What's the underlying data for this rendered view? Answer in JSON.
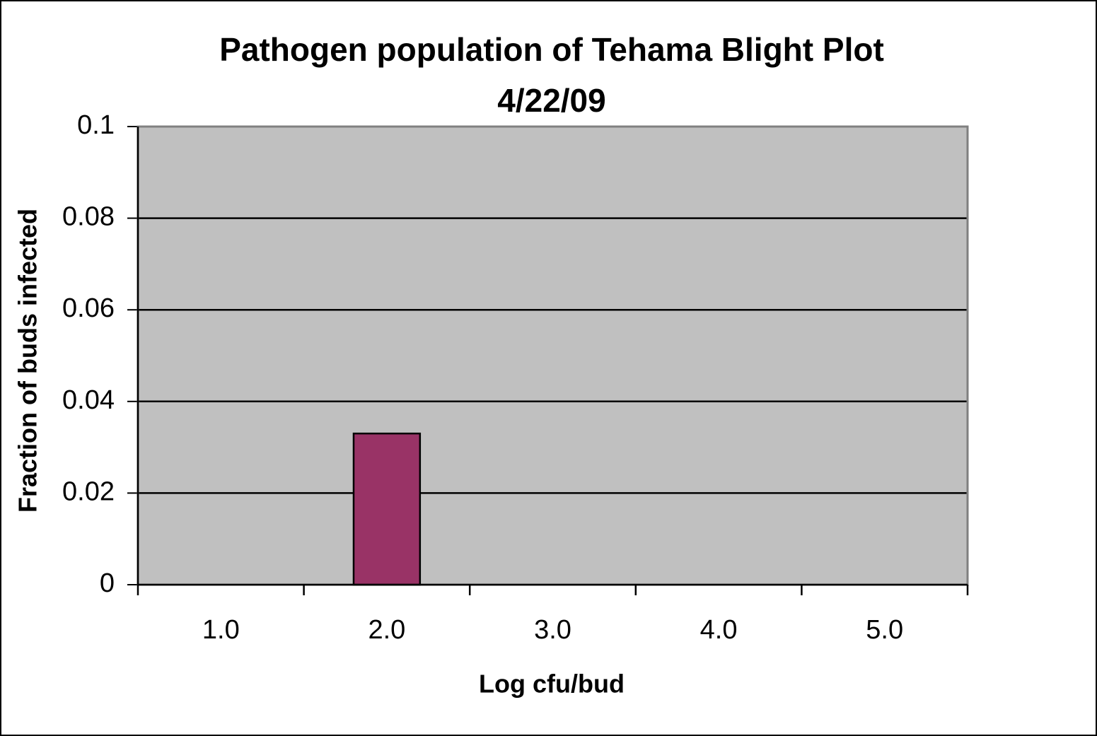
{
  "chart_data": {
    "type": "bar",
    "title": "Pathogen population of Tehama Blight Plot",
    "subtitle": "4/22/09",
    "x_label": "Log cfu/bud",
    "y_label": "Fraction of buds infected",
    "categories": [
      "1.0",
      "2.0",
      "3.0",
      "4.0",
      "5.0"
    ],
    "values": [
      0,
      0.033,
      0,
      0,
      0
    ],
    "color": "#993366",
    "ylim": [
      0,
      0.1
    ],
    "yticks": [
      0,
      0.02,
      0.04,
      0.06,
      0.08,
      0.1
    ],
    "grid": true
  }
}
